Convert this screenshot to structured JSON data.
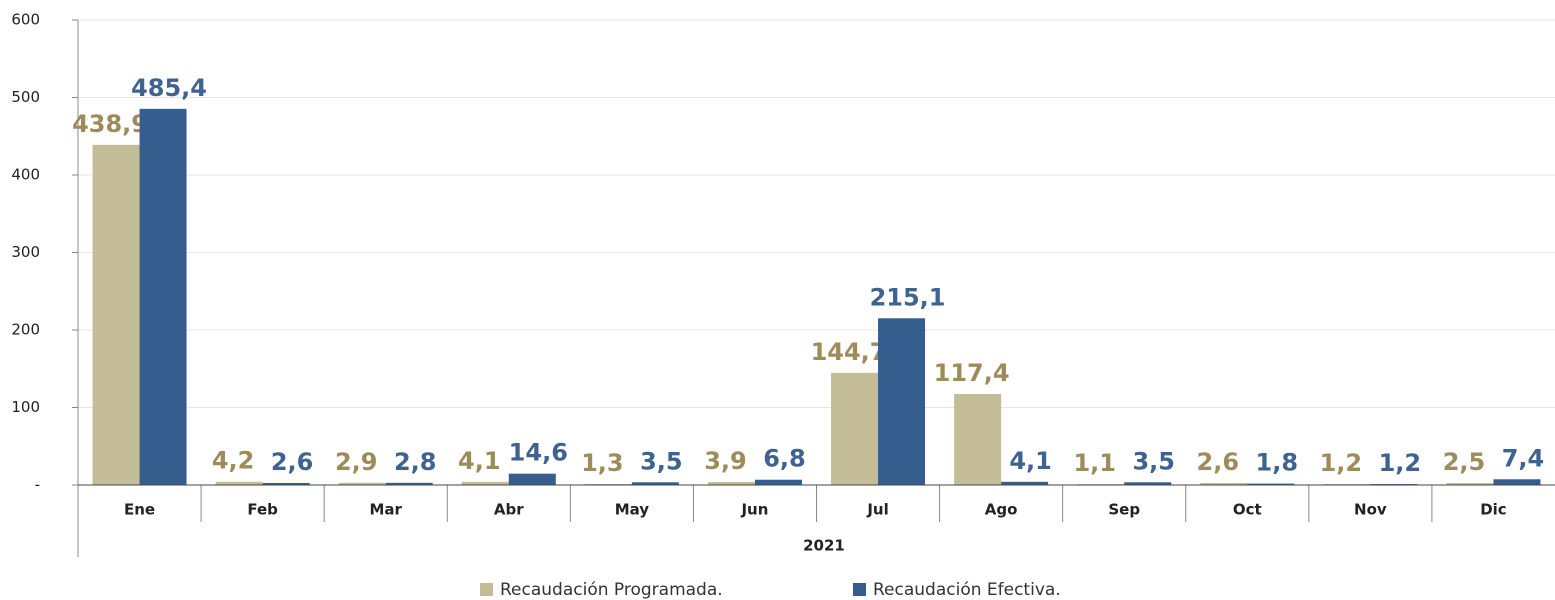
{
  "chart_data": {
    "type": "bar",
    "x_label": "2021",
    "categories": [
      "Ene",
      "Feb",
      "Mar",
      "Abr",
      "May",
      "Jun",
      "Jul",
      "Ago",
      "Sep",
      "Oct",
      "Nov",
      "Dic"
    ],
    "series": [
      {
        "name": "Recaudación Programada.",
        "color": "#c4bc96",
        "label_color": "#9d8c5a",
        "values": [
          438.9,
          4.2,
          2.9,
          4.1,
          1.3,
          3.9,
          144.7,
          117.4,
          1.1,
          2.6,
          1.2,
          2.5
        ],
        "value_labels": [
          "438,9",
          "4,2",
          "2,9",
          "4,1",
          "1,3",
          "3,9",
          "144,7",
          "117,4",
          "1,1",
          "2,6",
          "1,2",
          "2,5"
        ]
      },
      {
        "name": "Recaudación Efectiva.",
        "color": "#355e8f",
        "label_color": "#3e6390",
        "values": [
          485.4,
          2.6,
          2.8,
          14.6,
          3.5,
          6.8,
          215.1,
          4.1,
          3.5,
          1.8,
          1.2,
          7.4
        ],
        "value_labels": [
          "485,4",
          "2,6",
          "2,8",
          "14,6",
          "3,5",
          "6,8",
          "215,1",
          "4,1",
          "3,5",
          "1,8",
          "1,2",
          "7,4"
        ]
      }
    ],
    "ylim": [
      0,
      600
    ],
    "yticks": [
      {
        "value": 0,
        "label": "-"
      },
      100,
      200,
      300,
      400,
      500,
      600
    ],
    "grid": true
  }
}
